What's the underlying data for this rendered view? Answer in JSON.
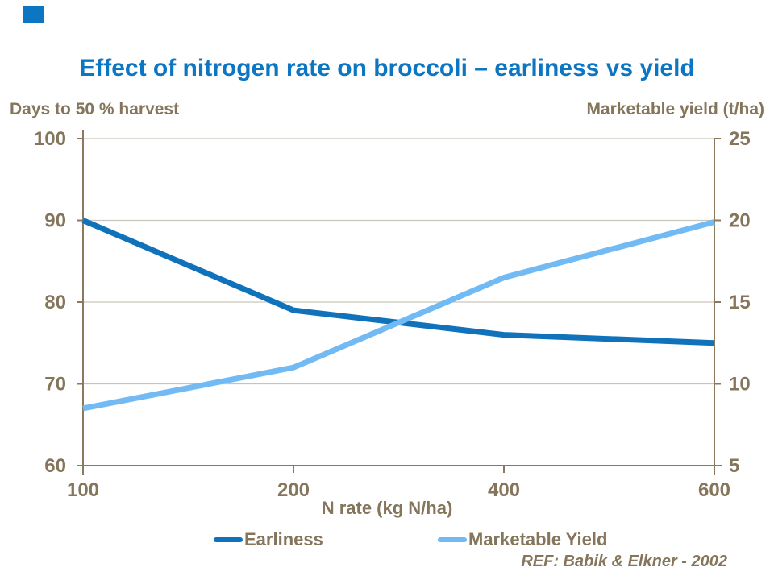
{
  "chart_data": {
    "type": "line",
    "title": "Effect of nitrogen rate on broccoli – earliness vs yield",
    "xlabel": "N rate (kg N/ha)",
    "x_categories": [
      "100",
      "200",
      "400",
      "600"
    ],
    "axes": {
      "left": {
        "label": "Days to 50 % harvest",
        "min": 60,
        "max": 100,
        "ticks": [
          100,
          90,
          80,
          70,
          60
        ]
      },
      "right": {
        "label": "Marketable yield (t/ha)",
        "min": 5,
        "max": 25,
        "ticks": [
          25,
          20,
          15,
          10,
          5
        ]
      }
    },
    "series": [
      {
        "name": "Earliness",
        "axis": "left",
        "color": "#1072ba",
        "values": [
          90,
          79,
          76,
          75
        ]
      },
      {
        "name": "Marketable Yield",
        "axis": "right",
        "color": "#72baf3",
        "values": [
          8.5,
          11,
          16.5,
          19.9
        ]
      }
    ],
    "grid": true,
    "legend_position": "bottom",
    "annotation": "REF: Babik & Elkner - 2002",
    "colors": {
      "title": "#0d76c2",
      "text": "#85755b",
      "axis": "#8a795e",
      "gridline": "#c9c4bb"
    }
  }
}
